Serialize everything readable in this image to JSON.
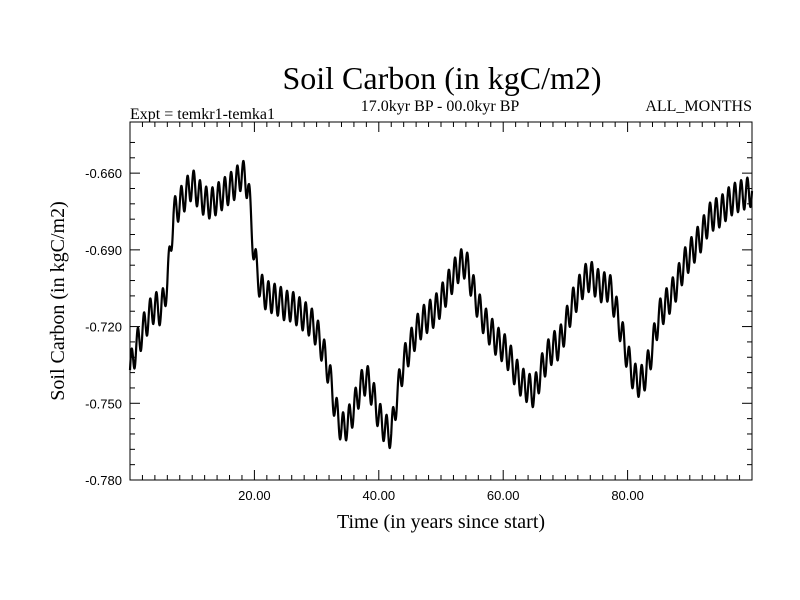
{
  "chart_data": {
    "type": "line",
    "title": "Soil Carbon (in kgC/m2)",
    "subtitle_left": "Expt = temkr1-temka1",
    "subtitle_center": "17.0kyr BP - 00.0kyr BP",
    "subtitle_right": "ALL_MONTHS",
    "xlabel": "Time (in years since start)",
    "ylabel": "Soil Carbon (in kgC/m2)",
    "xlim": [
      0,
      100
    ],
    "ylim": [
      -0.78,
      -0.64
    ],
    "xticks": [
      20,
      40,
      60,
      80
    ],
    "xtick_labels": [
      "20.00",
      "40.00",
      "60.00",
      "80.00"
    ],
    "yticks": [
      -0.78,
      -0.75,
      -0.72,
      -0.69,
      -0.66
    ],
    "ytick_labels": [
      "-0.780",
      "-0.750",
      "-0.720",
      "-0.690",
      "-0.660"
    ],
    "seasonal_cycle": {
      "amplitude": 0.006,
      "period_years": 1
    },
    "series": [
      {
        "name": "Soil Carbon",
        "x": [
          0,
          1,
          2,
          3,
          4,
          5,
          6,
          7,
          8,
          9,
          10,
          11,
          12,
          13,
          14,
          15,
          16,
          17,
          18,
          19,
          20,
          21,
          22,
          23,
          24,
          25,
          26,
          27,
          28,
          29,
          30,
          31,
          32,
          33,
          34,
          35,
          36,
          37,
          38,
          39,
          40,
          41,
          42,
          43,
          44,
          45,
          46,
          47,
          48,
          49,
          50,
          51,
          52,
          53,
          54,
          55,
          56,
          57,
          58,
          59,
          60,
          61,
          62,
          63,
          64,
          65,
          66,
          67,
          68,
          69,
          70,
          71,
          72,
          73,
          74,
          75,
          76,
          77,
          78,
          79,
          80,
          81,
          82,
          83,
          84,
          85,
          86,
          87,
          88,
          89,
          90,
          91,
          92,
          93,
          94,
          95,
          96,
          97,
          98,
          99,
          100
        ],
        "values": [
          -0.737,
          -0.728,
          -0.722,
          -0.716,
          -0.712,
          -0.714,
          -0.703,
          -0.676,
          -0.672,
          -0.668,
          -0.664,
          -0.668,
          -0.671,
          -0.672,
          -0.67,
          -0.668,
          -0.666,
          -0.664,
          -0.66,
          -0.665,
          -0.693,
          -0.705,
          -0.708,
          -0.709,
          -0.71,
          -0.712,
          -0.712,
          -0.714,
          -0.716,
          -0.718,
          -0.722,
          -0.729,
          -0.738,
          -0.752,
          -0.76,
          -0.758,
          -0.752,
          -0.744,
          -0.74,
          -0.746,
          -0.755,
          -0.76,
          -0.762,
          -0.746,
          -0.734,
          -0.728,
          -0.722,
          -0.718,
          -0.716,
          -0.714,
          -0.71,
          -0.705,
          -0.7,
          -0.696,
          -0.695,
          -0.704,
          -0.712,
          -0.718,
          -0.722,
          -0.726,
          -0.728,
          -0.732,
          -0.738,
          -0.742,
          -0.744,
          -0.746,
          -0.738,
          -0.732,
          -0.728,
          -0.727,
          -0.72,
          -0.712,
          -0.707,
          -0.702,
          -0.7,
          -0.703,
          -0.705,
          -0.704,
          -0.712,
          -0.722,
          -0.732,
          -0.74,
          -0.742,
          -0.738,
          -0.728,
          -0.716,
          -0.712,
          -0.708,
          -0.703,
          -0.696,
          -0.692,
          -0.688,
          -0.684,
          -0.678,
          -0.676,
          -0.675,
          -0.672,
          -0.67,
          -0.669,
          -0.668,
          -0.667
        ]
      }
    ]
  }
}
